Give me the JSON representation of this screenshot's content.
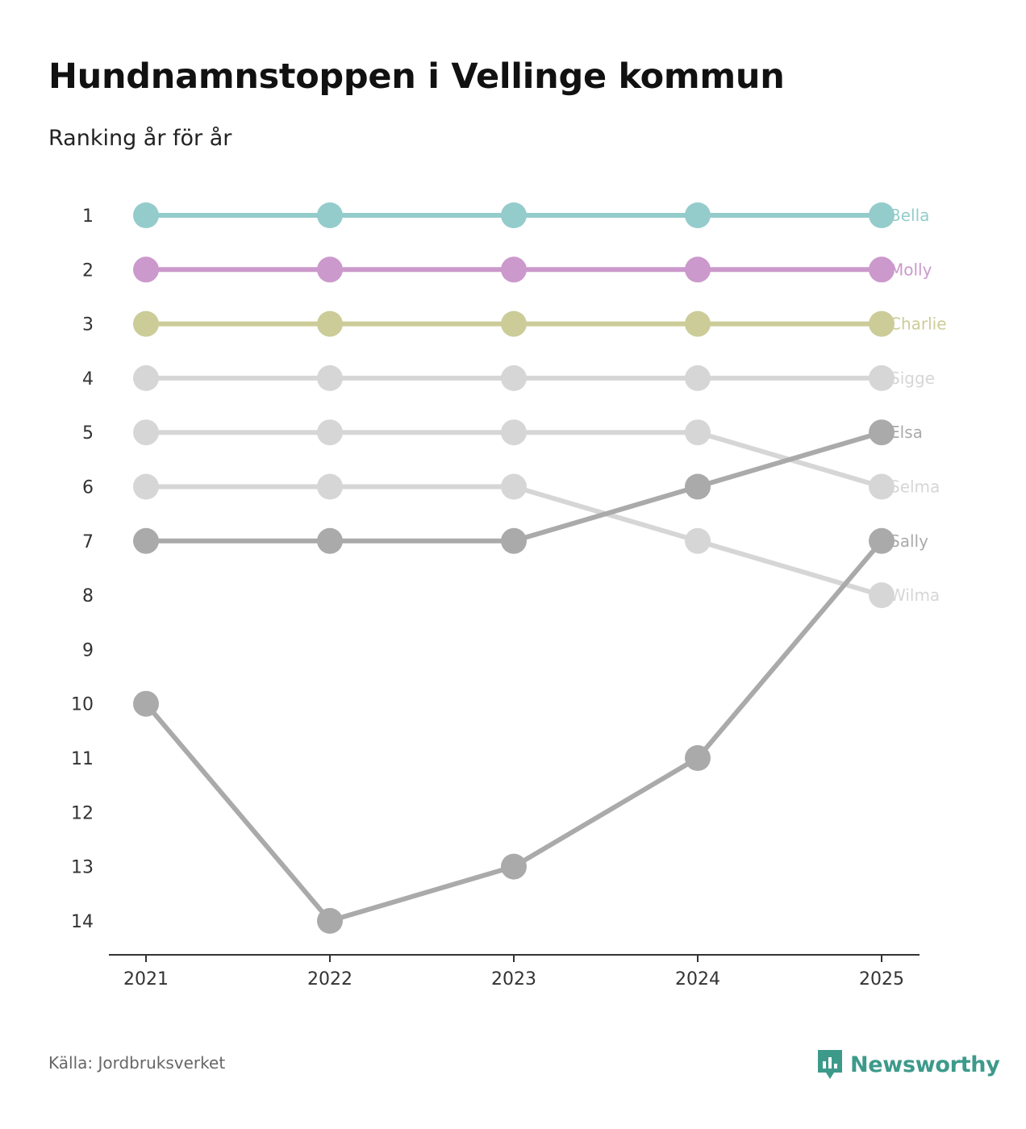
{
  "header": {
    "title": "Hundnamnstoppen i Vellinge kommun",
    "subtitle": "Ranking år för år"
  },
  "footer": {
    "source": "Källa: Jordbruksverket",
    "brand": "Newsworthy",
    "brand_color": "#3d9a8b"
  },
  "chart_data": {
    "type": "line",
    "title": "Hundnamnstoppen i Vellinge kommun",
    "subtitle": "Ranking år för år",
    "x": [
      "2021",
      "2022",
      "2023",
      "2024",
      "2025"
    ],
    "ylim": [
      1,
      14
    ],
    "y_inverted": true,
    "y_ticks": [
      "1",
      "2",
      "3",
      "4",
      "5",
      "6",
      "7",
      "8",
      "9",
      "10",
      "11",
      "12",
      "13",
      "14"
    ],
    "series": [
      {
        "name": "Bella",
        "values": [
          1,
          1,
          1,
          1,
          1
        ],
        "color": "#94cccb"
      },
      {
        "name": "Molly",
        "values": [
          2,
          2,
          2,
          2,
          2
        ],
        "color": "#cc99cc"
      },
      {
        "name": "Charlie",
        "values": [
          3,
          3,
          3,
          3,
          3
        ],
        "color": "#cccc99"
      },
      {
        "name": "Sigge",
        "values": [
          4,
          4,
          4,
          4,
          4
        ],
        "color": "#d6d6d6"
      },
      {
        "name": "Selma",
        "values": [
          5,
          5,
          5,
          5,
          6
        ],
        "color": "#d6d6d6"
      },
      {
        "name": "Wilma",
        "values": [
          6,
          6,
          6,
          7,
          8
        ],
        "color": "#d6d6d6"
      },
      {
        "name": "Elsa",
        "values": [
          7,
          7,
          7,
          6,
          5
        ],
        "color": "#aaaaaa"
      },
      {
        "name": "Sally",
        "values": [
          10,
          14,
          13,
          11,
          7
        ],
        "color": "#aaaaaa"
      }
    ]
  }
}
